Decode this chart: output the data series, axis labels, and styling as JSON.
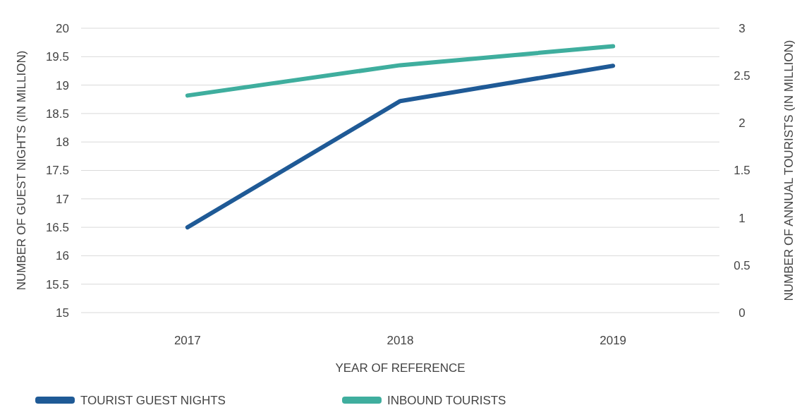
{
  "chart_data": {
    "type": "line",
    "xlabel": "YEAR OF REFERENCE",
    "ylabel": "NUMBER OF GUEST NIGHTS (IN MILLION)",
    "y2label": "NUMBER OF ANNUAL TOURISTS (IN MILLION)",
    "categories": [
      "2017",
      "2018",
      "2019"
    ],
    "series": [
      {
        "name": "TOURIST GUEST NIGHTS",
        "color": "#1f5a96",
        "values": [
          16.5,
          18.72,
          19.34
        ]
      },
      {
        "name": "INBOUND TOURISTS",
        "color": "#3fae9e",
        "values": [
          2.29,
          2.61,
          2.81
        ],
        "axis": "y2"
      }
    ],
    "ylim": [
      15,
      20
    ],
    "yticks": [
      15,
      15.5,
      16,
      16.5,
      17,
      17.5,
      18,
      18.5,
      19,
      19.5,
      20
    ],
    "y2lim": [
      0,
      3
    ],
    "y2ticks": [
      0,
      0.5,
      1,
      1.5,
      2,
      2.5,
      3
    ],
    "grid": "y",
    "legend": "bottom",
    "marker": "none",
    "line_style": "solid"
  }
}
